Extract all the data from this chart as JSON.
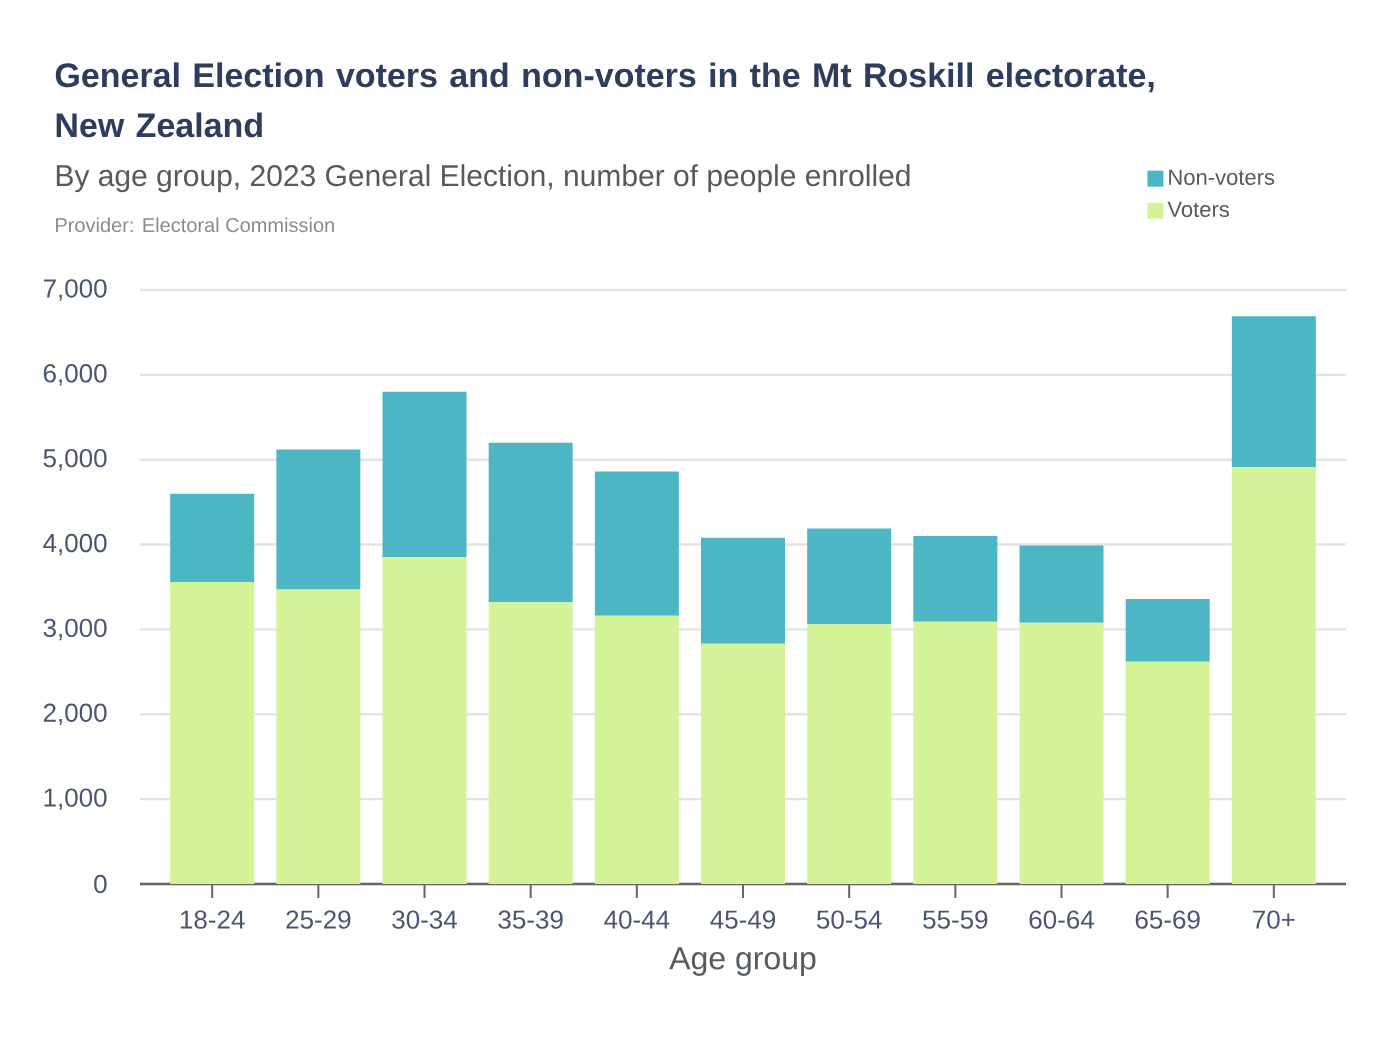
{
  "chart_data": {
    "type": "bar",
    "title": "General Election voters and non-voters in the Mt Roskill electorate, New Zealand",
    "subtitle": "By age group, 2023 General Election, number of people enrolled",
    "annotations": [
      "Provider: Electoral Commission"
    ],
    "xlabel": "Age group",
    "categories": [
      "18-24",
      "25-29",
      "30-34",
      "35-39",
      "40-44",
      "45-49",
      "50-54",
      "55-59",
      "60-64",
      "65-69",
      "70+"
    ],
    "series": [
      {
        "name": "Voters",
        "color": "#d4f397",
        "values": [
          3560,
          3470,
          3850,
          3320,
          3160,
          2830,
          3060,
          3090,
          3080,
          2620,
          4910
        ]
      },
      {
        "name": "Non-voters",
        "color": "#4db6c4",
        "values": [
          1040,
          1650,
          1950,
          1880,
          1700,
          1250,
          1130,
          1010,
          910,
          740,
          1780
        ]
      }
    ],
    "stacked": true,
    "ylim": [
      0,
      7000
    ],
    "yticks": [
      0,
      {
        "value": 1000,
        "label": "1,000"
      },
      {
        "value": 2000,
        "label": "2,000"
      },
      {
        "value": 3000,
        "label": "3,000"
      },
      {
        "value": 4000,
        "label": "4,000"
      },
      {
        "value": 5000,
        "label": "5,000"
      },
      {
        "value": 6000,
        "label": "6,000"
      },
      {
        "value": 7000,
        "label": "7,000"
      }
    ],
    "grid": "y",
    "legend": "top right"
  }
}
